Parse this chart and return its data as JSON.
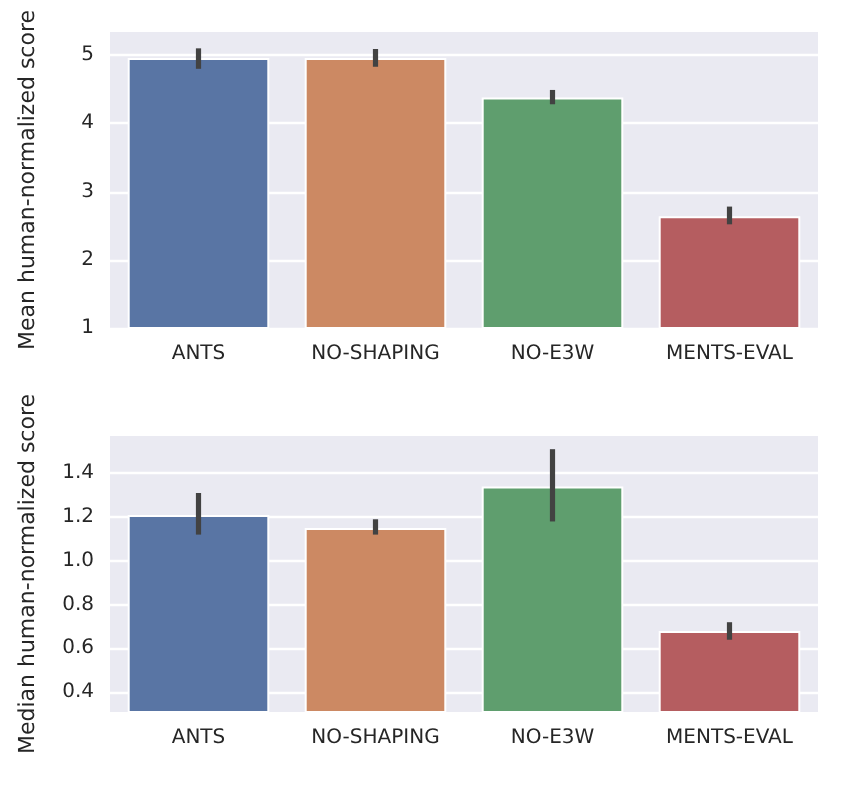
{
  "chart_data": [
    {
      "type": "bar",
      "ylabel": "Mean human-normalized score",
      "categories": [
        "ANTS",
        "NO-SHAPING",
        "NO-E3W",
        "MENTS-EVAL"
      ],
      "values": [
        4.96,
        4.96,
        4.38,
        2.64
      ],
      "colors": [
        "#5975a4",
        "#cc8963",
        "#5f9e6e",
        "#b55d60"
      ],
      "errors": [
        [
          4.8,
          5.1
        ],
        [
          4.83,
          5.09
        ],
        [
          4.28,
          4.49
        ],
        [
          2.52,
          2.78
        ]
      ],
      "ylim": [
        1,
        5.34
      ],
      "yticks": [
        1,
        2,
        3,
        4,
        5
      ],
      "grid": "y"
    },
    {
      "type": "bar",
      "ylabel": "Median human-normalized score",
      "categories": [
        "ANTS",
        "NO-SHAPING",
        "NO-E3W",
        "MENTS-EVAL"
      ],
      "values": [
        1.21,
        1.15,
        1.34,
        0.68
      ],
      "colors": [
        "#5975a4",
        "#cc8963",
        "#5f9e6e",
        "#b55d60"
      ],
      "errors": [
        [
          1.12,
          1.31
        ],
        [
          1.12,
          1.19
        ],
        [
          1.18,
          1.51
        ],
        [
          0.64,
          0.72
        ]
      ],
      "ylim": [
        0.31,
        1.57
      ],
      "yticks": [
        {
          "value": 0.4,
          "label": "0.4"
        },
        {
          "value": 0.6,
          "label": "0.6"
        },
        {
          "value": 0.8,
          "label": "0.8"
        },
        {
          "value": 1.0,
          "label": "1.0"
        },
        {
          "value": 1.2,
          "label": "1.2"
        },
        {
          "value": 1.4,
          "label": "1.4"
        }
      ],
      "grid": "y"
    }
  ]
}
